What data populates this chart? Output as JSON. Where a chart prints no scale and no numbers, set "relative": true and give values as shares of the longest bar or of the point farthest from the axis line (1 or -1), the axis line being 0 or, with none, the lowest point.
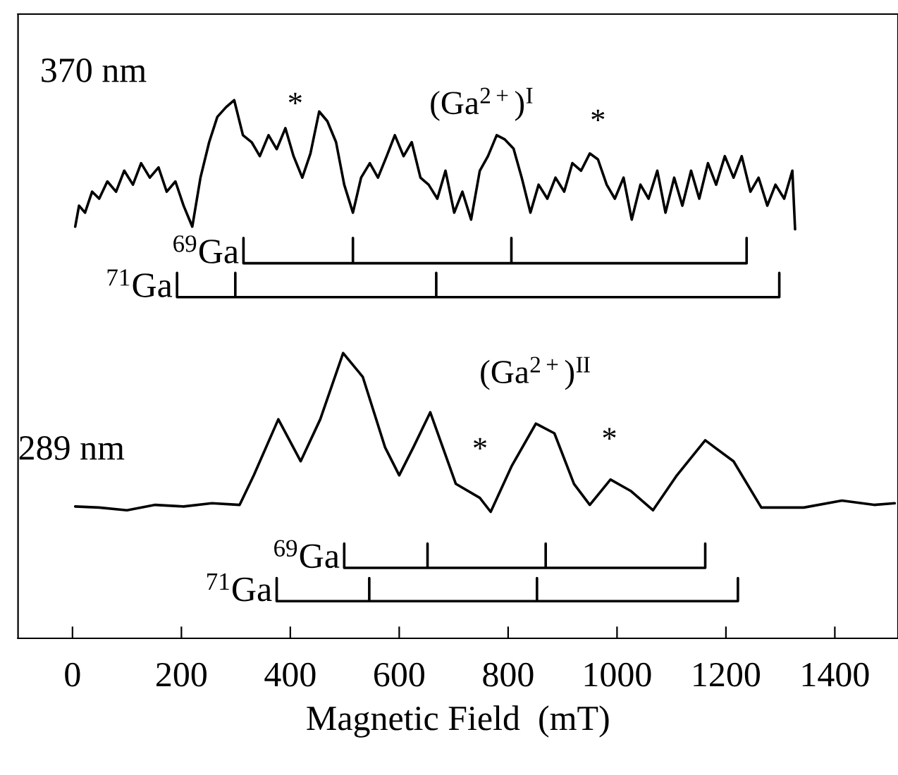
{
  "chart_data": {
    "type": "line",
    "relative": true,
    "xlabel": "Magnetic Field  (mT)",
    "xlim": [
      -100,
      1516
    ],
    "xticks": [
      0,
      200,
      400,
      600,
      800,
      1000,
      1200,
      1400
    ],
    "grid": false,
    "legend": false,
    "marker": "none",
    "line_style": "solid",
    "series": [
      {
        "color": "#000000",
        "x": [
          5,
          12,
          23,
          36,
          49,
          64,
          80,
          95,
          111,
          126,
          142,
          158,
          173,
          189,
          204,
          220,
          235,
          251,
          266,
          282,
          297,
          313,
          329,
          344,
          360,
          375,
          391,
          406,
          422,
          437,
          453,
          468,
          484,
          499,
          515,
          530,
          546,
          561,
          577,
          592,
          608,
          623,
          639,
          654,
          670,
          685,
          701,
          716,
          732,
          748,
          763,
          779,
          794,
          810,
          825,
          841,
          856,
          872,
          887,
          903,
          918,
          934,
          950,
          965,
          981,
          996,
          1012,
          1027,
          1043,
          1058,
          1074,
          1089,
          1105,
          1120,
          1136,
          1151,
          1167,
          1182,
          1198,
          1214,
          1229,
          1245,
          1260,
          1276,
          1291,
          1307,
          1322,
          1327
        ],
        "values": [
          0.765,
          0.804,
          0.791,
          0.83,
          0.817,
          0.849,
          0.83,
          0.869,
          0.843,
          0.883,
          0.856,
          0.875,
          0.83,
          0.849,
          0.804,
          0.765,
          0.856,
          0.922,
          0.969,
          0.987,
          1.0,
          0.935,
          0.922,
          0.896,
          0.935,
          0.909,
          0.948,
          0.896,
          0.856,
          0.901,
          0.979,
          0.961,
          0.922,
          0.843,
          0.791,
          0.856,
          0.883,
          0.856,
          0.896,
          0.935,
          0.896,
          0.922,
          0.856,
          0.843,
          0.817,
          0.869,
          0.791,
          0.83,
          0.778,
          0.869,
          0.896,
          0.935,
          0.927,
          0.91,
          0.856,
          0.791,
          0.843,
          0.817,
          0.856,
          0.83,
          0.883,
          0.869,
          0.901,
          0.89,
          0.843,
          0.817,
          0.856,
          0.778,
          0.843,
          0.817,
          0.869,
          0.791,
          0.856,
          0.804,
          0.869,
          0.817,
          0.883,
          0.843,
          0.896,
          0.856,
          0.896,
          0.83,
          0.856,
          0.804,
          0.843,
          0.817,
          0.869,
          0.76
        ]
      },
      {
        "name": "$^{69}$Ga",
        "color": "#000000",
        "x": [
          314,
          314,
          515,
          515,
          515,
          806,
          806,
          806,
          1238,
          1238
        ],
        "values": [
          0.744,
          0.697,
          0.697,
          0.744,
          0.697,
          0.697,
          0.744,
          0.697,
          0.697,
          0.744
        ]
      },
      {
        "name": "$^{71}$Ga",
        "color": "#000000",
        "x": [
          192,
          192,
          299,
          299,
          299,
          668,
          668,
          668,
          1298,
          1298
        ],
        "values": [
          0.679,
          0.634,
          0.634,
          0.679,
          0.634,
          0.634,
          0.679,
          0.634,
          0.634,
          0.679
        ]
      },
      {
        "color": "#000000",
        "x": [
          5,
          49,
          100,
          152,
          204,
          256,
          307,
          333,
          378,
          419,
          455,
          497,
          533,
          574,
          600,
          626,
          657,
          704,
          748,
          768,
          807,
          851,
          885,
          921,
          950,
          988,
          1025,
          1066,
          1110,
          1162,
          1214,
          1265,
          1343,
          1413,
          1472,
          1510
        ],
        "values": [
          0.245,
          0.243,
          0.238,
          0.248,
          0.245,
          0.251,
          0.248,
          0.303,
          0.407,
          0.329,
          0.407,
          0.53,
          0.486,
          0.355,
          0.303,
          0.355,
          0.42,
          0.287,
          0.261,
          0.235,
          0.321,
          0.399,
          0.381,
          0.287,
          0.248,
          0.295,
          0.274,
          0.238,
          0.303,
          0.368,
          0.329,
          0.243,
          0.243,
          0.256,
          0.248,
          0.251
        ]
      },
      {
        "name": "$^{69}$Ga",
        "color": "#000000",
        "x": [
          499,
          499,
          652,
          652,
          652,
          869,
          869,
          869,
          1162,
          1162
        ],
        "values": [
          0.176,
          0.131,
          0.131,
          0.176,
          0.131,
          0.131,
          0.176,
          0.131,
          0.131,
          0.176
        ]
      },
      {
        "name": "$^{71}$Ga",
        "color": "#000000",
        "x": [
          375,
          375,
          545,
          545,
          545,
          853,
          853,
          853,
          1222,
          1222
        ],
        "values": [
          0.112,
          0.069,
          0.069,
          0.112,
          0.069,
          0.069,
          0.112,
          0.069,
          0.069,
          0.112
        ]
      }
    ],
    "annotations": [
      "370 nm",
      "289 nm",
      "(Ga$^{2+}$)$^{I}$",
      "(Ga$^{2+}$)$^{II}$",
      "*",
      "*",
      "*",
      "*"
    ]
  }
}
